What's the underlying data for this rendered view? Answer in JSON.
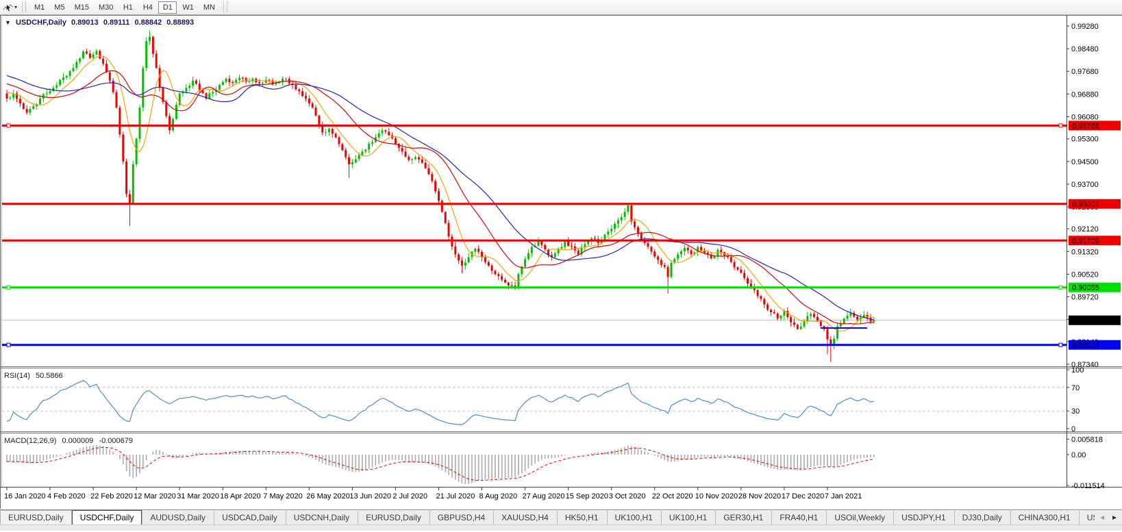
{
  "toolbar": {
    "cursor_tool": "crosshair-cursor",
    "dropdown_caret": "▾",
    "timeframes": [
      "M1",
      "M5",
      "M15",
      "M30",
      "H1",
      "H4",
      "D1",
      "W1",
      "MN"
    ],
    "active_timeframe": "D1"
  },
  "chart": {
    "menu_arrow": "▼",
    "title": "USDCHF,Daily",
    "ohlc": {
      "open": "0.89013",
      "high": "0.89111",
      "low": "0.88842",
      "close": "0.88893"
    },
    "price_ticks": [
      [
        "0.99280",
        0.9928
      ],
      [
        "0.98480",
        0.9848
      ],
      [
        "0.97680",
        0.9768
      ],
      [
        "0.96880",
        0.9688
      ],
      [
        "0.96080",
        0.9608
      ],
      [
        "0.95300",
        0.953
      ],
      [
        "0.94500",
        0.945
      ],
      [
        "0.93700",
        0.937
      ],
      [
        "0.92900",
        0.929
      ],
      [
        "0.92120",
        0.9212
      ],
      [
        "0.91320",
        0.9132
      ],
      [
        "0.90520",
        0.9052
      ],
      [
        "0.89720",
        0.8972
      ],
      [
        "0.88920",
        0.8892
      ],
      [
        "0.88140",
        0.8814
      ],
      [
        "0.87340",
        0.8734
      ]
    ],
    "hlines": [
      {
        "label": "0.95766",
        "price": 0.95766,
        "color": "#ee0000",
        "text_color": "#ffffff",
        "width": 3,
        "handles": true
      },
      {
        "label": "0.93001",
        "price": 0.93001,
        "color": "#ee0000",
        "text_color": "#ffffff",
        "width": 3,
        "handles": false
      },
      {
        "label": "0.91709",
        "price": 0.91709,
        "color": "#ee0000",
        "text_color": "#ffffff",
        "width": 3,
        "handles": false
      },
      {
        "label": "0.90055",
        "price": 0.90055,
        "color": "#00e000",
        "text_color": "#000000",
        "width": 3,
        "handles": true
      },
      {
        "label": "0.88024",
        "price": 0.88024,
        "color": "#0000ff",
        "text_color": "#ffffff",
        "width": 3,
        "handles": true
      }
    ],
    "current_price": {
      "label": "0.88893",
      "price": 0.88893,
      "line_color": "#bdbdbd",
      "badge_bg": "#000000",
      "badge_text": "#ffffff"
    },
    "time_labels": [
      "16 Jan 2020",
      "4 Feb 2020",
      "22 Feb 2020",
      "12 Mar 2020",
      "31 Mar 2020",
      "18 Apr 2020",
      "7 May 2020",
      "26 May 2020",
      "13 Jun 2020",
      "2 Jul 2020",
      "21 Jul 2020",
      "8 Aug 2020",
      "27 Aug 2020",
      "15 Sep 2020",
      "3 Oct 2020",
      "22 Oct 2020",
      "10 Nov 2020",
      "28 Nov 2020",
      "17 Dec 2020",
      "7 Jan 2021"
    ]
  },
  "indicators": {
    "rsi": {
      "name": "RSI(14)",
      "value": "50.5866",
      "line_color": "#4a8ed0",
      "axis_labels": [
        {
          "label": "100",
          "v": 100
        },
        {
          "label": "70",
          "v": 70,
          "dashed": true
        },
        {
          "label": "30",
          "v": 30,
          "dashed": true
        },
        {
          "label": "0",
          "v": 0
        }
      ]
    },
    "macd": {
      "name": "MACD(12,26,9)",
      "value_main": "0.000009",
      "value_signal": "-0.000679",
      "hist_color": "#b2b2b2",
      "signal_color": "#e00000",
      "axis_labels": [
        {
          "label": "0.005818",
          "v": 0.005818
        },
        {
          "label": "0.00",
          "v": 0
        },
        {
          "label": "-0.011514",
          "v": -0.011514
        }
      ]
    }
  },
  "tabs": {
    "items": [
      "EURUSD,Daily",
      "USDCHF,Daily",
      "AUDUSD,Daily",
      "USDCAD,Daily",
      "USDCNH,Daily",
      "EURUSD,Daily",
      "GBPUSD,H4",
      "XAUUSD,H4",
      "HK50,H1",
      "UK100,H1",
      "UK100,H1",
      "GER30,H1",
      "FRA40,H1",
      "USOil,Weekly",
      "USDJPY,H1",
      "DJ30,Daily",
      "CHINA300,H1",
      "USOil,"
    ],
    "active_index": 1,
    "scroll_left": "◄",
    "scroll_right": "►"
  },
  "chart_data": {
    "type": "candlestick",
    "symbol": "USDCHF",
    "timeframe": "Daily",
    "up_color": "#00c000",
    "down_color": "#f20000",
    "visible_bars": 262,
    "prehistory": {
      "bars": 40,
      "start": 0.985,
      "end": 0.9685
    },
    "close_anchors": [
      [
        0,
        0.9672
      ],
      [
        2,
        0.969
      ],
      [
        4,
        0.9655
      ],
      [
        6,
        0.9622
      ],
      [
        8,
        0.9645
      ],
      [
        10,
        0.9672
      ],
      [
        12,
        0.969
      ],
      [
        14,
        0.971
      ],
      [
        16,
        0.9738
      ],
      [
        18,
        0.9752
      ],
      [
        20,
        0.978
      ],
      [
        23,
        0.9838
      ],
      [
        25,
        0.9815
      ],
      [
        27,
        0.984
      ],
      [
        29,
        0.9795
      ],
      [
        31,
        0.9735
      ],
      [
        33,
        0.964
      ],
      [
        34,
        0.9545
      ],
      [
        35,
        0.945
      ],
      [
        36,
        0.9335
      ],
      [
        37,
        0.93
      ],
      [
        38,
        0.944
      ],
      [
        39,
        0.953
      ],
      [
        40,
        0.964
      ],
      [
        41,
        0.978
      ],
      [
        42,
        0.9875
      ],
      [
        43,
        0.989
      ],
      [
        44,
        0.983
      ],
      [
        45,
        0.978
      ],
      [
        46,
        0.971
      ],
      [
        47,
        0.966
      ],
      [
        48,
        0.961
      ],
      [
        49,
        0.956
      ],
      [
        50,
        0.96
      ],
      [
        51,
        0.965
      ],
      [
        52,
        0.969
      ],
      [
        54,
        0.971
      ],
      [
        56,
        0.9735
      ],
      [
        58,
        0.97
      ],
      [
        60,
        0.9672
      ],
      [
        62,
        0.9695
      ],
      [
        64,
        0.972
      ],
      [
        66,
        0.9742
      ],
      [
        68,
        0.9728
      ],
      [
        70,
        0.9745
      ],
      [
        72,
        0.9732
      ],
      [
        74,
        0.9742
      ],
      [
        76,
        0.9726
      ],
      [
        78,
        0.9738
      ],
      [
        80,
        0.9722
      ],
      [
        82,
        0.9732
      ],
      [
        84,
        0.9742
      ],
      [
        86,
        0.972
      ],
      [
        88,
        0.9698
      ],
      [
        90,
        0.9672
      ],
      [
        92,
        0.964
      ],
      [
        93,
        0.9612
      ],
      [
        94,
        0.958
      ],
      [
        95,
        0.9552
      ],
      [
        97,
        0.9565
      ],
      [
        99,
        0.9535
      ],
      [
        101,
        0.949
      ],
      [
        103,
        0.944
      ],
      [
        105,
        0.9458
      ],
      [
        107,
        0.9485
      ],
      [
        109,
        0.9512
      ],
      [
        111,
        0.9535
      ],
      [
        113,
        0.956
      ],
      [
        115,
        0.9542
      ],
      [
        117,
        0.9512
      ],
      [
        119,
        0.9485
      ],
      [
        121,
        0.9455
      ],
      [
        123,
        0.9465
      ],
      [
        125,
        0.9445
      ],
      [
        127,
        0.9405
      ],
      [
        129,
        0.9345
      ],
      [
        131,
        0.9272
      ],
      [
        133,
        0.9185
      ],
      [
        135,
        0.9122
      ],
      [
        137,
        0.9082
      ],
      [
        139,
        0.9112
      ],
      [
        141,
        0.9142
      ],
      [
        143,
        0.9112
      ],
      [
        145,
        0.9082
      ],
      [
        147,
        0.9052
      ],
      [
        149,
        0.9032
      ],
      [
        151,
        0.9012
      ],
      [
        153,
        0.9002
      ],
      [
        154,
        0.9052
      ],
      [
        156,
        0.9105
      ],
      [
        158,
        0.9148
      ],
      [
        160,
        0.9168
      ],
      [
        162,
        0.914
      ],
      [
        164,
        0.9112
      ],
      [
        166,
        0.9142
      ],
      [
        168,
        0.9168
      ],
      [
        170,
        0.915
      ],
      [
        172,
        0.9122
      ],
      [
        174,
        0.9158
      ],
      [
        176,
        0.9178
      ],
      [
        178,
        0.9162
      ],
      [
        180,
        0.9192
      ],
      [
        182,
        0.9212
      ],
      [
        184,
        0.9242
      ],
      [
        186,
        0.9272
      ],
      [
        187,
        0.9295
      ],
      [
        188,
        0.9238
      ],
      [
        190,
        0.9195
      ],
      [
        192,
        0.9162
      ],
      [
        194,
        0.9132
      ],
      [
        196,
        0.9102
      ],
      [
        198,
        0.9078
      ],
      [
        199,
        0.9042
      ],
      [
        200,
        0.9092
      ],
      [
        202,
        0.9122
      ],
      [
        204,
        0.9145
      ],
      [
        206,
        0.9122
      ],
      [
        208,
        0.9148
      ],
      [
        210,
        0.9128
      ],
      [
        212,
        0.9108
      ],
      [
        214,
        0.9138
      ],
      [
        216,
        0.9118
      ],
      [
        218,
        0.9095
      ],
      [
        220,
        0.9068
      ],
      [
        222,
        0.9038
      ],
      [
        224,
        0.9008
      ],
      [
        226,
        0.8975
      ],
      [
        228,
        0.8945
      ],
      [
        230,
        0.8918
      ],
      [
        232,
        0.8895
      ],
      [
        234,
        0.8922
      ],
      [
        236,
        0.8882
      ],
      [
        238,
        0.8858
      ],
      [
        240,
        0.8885
      ],
      [
        242,
        0.8912
      ],
      [
        244,
        0.8888
      ],
      [
        246,
        0.8858
      ],
      [
        248,
        0.88
      ],
      [
        249,
        0.8825
      ],
      [
        250,
        0.8868
      ],
      [
        252,
        0.8895
      ],
      [
        254,
        0.8915
      ],
      [
        256,
        0.8892
      ],
      [
        258,
        0.8908
      ],
      [
        260,
        0.8885
      ],
      [
        261,
        0.88893
      ]
    ],
    "wick_spikes": [
      {
        "i": 37,
        "low": 0.9222
      },
      {
        "i": 43,
        "high": 0.9912
      },
      {
        "i": 103,
        "low": 0.9392
      },
      {
        "i": 137,
        "low": 0.9056
      },
      {
        "i": 153,
        "low": 0.8997
      },
      {
        "i": 187,
        "high": 0.9301
      },
      {
        "i": 199,
        "low": 0.8984
      },
      {
        "i": 247,
        "low": 0.877
      },
      {
        "i": 248,
        "low": 0.8742
      }
    ],
    "moving_averages": [
      {
        "name": "ma-fast",
        "period": 8,
        "color": "#ff9f00"
      },
      {
        "name": "ma-mid",
        "period": 21,
        "color": "#e00000"
      },
      {
        "name": "ma-slow",
        "period": 35,
        "color": "#2222c2"
      }
    ],
    "blue_segment": {
      "price": 0.8862,
      "i1": 245,
      "i2": 259,
      "color": "#0000c0"
    }
  }
}
